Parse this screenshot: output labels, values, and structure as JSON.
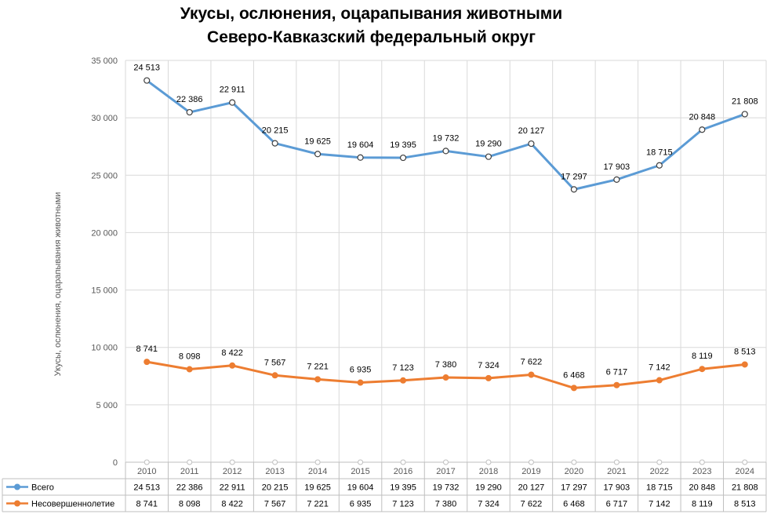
{
  "title": "Укусы, ослюнения, оцарапывания животными",
  "subtitle": "Северо-Кавказский федеральный округ",
  "chart_data": {
    "type": "line",
    "title": "Укусы, ослюнения, оцарапывания животными",
    "subtitle": "Северо-Кавказский федеральный округ",
    "xlabel": "",
    "ylabel": "Укусы, ослюнения, оцарапывания животными",
    "categories": [
      "2010",
      "2011",
      "2012",
      "2013",
      "2014",
      "2015",
      "2016",
      "2017",
      "2018",
      "2019",
      "2020",
      "2021",
      "2022",
      "2023",
      "2024"
    ],
    "y_ticks": [
      "0",
      "5 000",
      "10 000",
      "15 000",
      "20 000",
      "25 000",
      "30 000",
      "35 000"
    ],
    "ylim": [
      0,
      35000
    ],
    "grid": true,
    "legend_placement": "data-table-bottom",
    "series": [
      {
        "name": "Всего",
        "color": "#5b9bd5",
        "plotted_values": [
          33254,
          30484,
          31333,
          27782,
          26846,
          26539,
          26518,
          27112,
          26614,
          27749,
          23765,
          24620,
          25857,
          28967,
          30321
        ],
        "labels": [
          "24 513",
          "22 386",
          "22 911",
          "20 215",
          "19 625",
          "19 604",
          "19 395",
          "19 732",
          "19 290",
          "20 127",
          "17 297",
          "17 903",
          "18 715",
          "20 848",
          "21 808"
        ],
        "table_values": [
          "24 513",
          "22 386",
          "22 911",
          "20 215",
          "19 625",
          "19 604",
          "19 395",
          "19 732",
          "19 290",
          "20 127",
          "17 297",
          "17 903",
          "18 715",
          "20 848",
          "21 808"
        ]
      },
      {
        "name": "Несовершеннолетие",
        "color": "#ed7d31",
        "plotted_values": [
          8741,
          8098,
          8422,
          7567,
          7221,
          6935,
          7123,
          7380,
          7324,
          7622,
          6468,
          6717,
          7142,
          8119,
          8513
        ],
        "labels": [
          "8 741",
          "8 098",
          "8 422",
          "7 567",
          "7 221",
          "6 935",
          "7 123",
          "7 380",
          "7 324",
          "7 622",
          "6 468",
          "6 717",
          "7 142",
          "8 119",
          "8 513"
        ],
        "table_values": [
          "8 741",
          "8 098",
          "8 422",
          "7 567",
          "7 221",
          "6 935",
          "7 123",
          "7 380",
          "7 324",
          "7 622",
          "6 468",
          "6 717",
          "7 142",
          "8 119",
          "8 513"
        ]
      }
    ]
  }
}
